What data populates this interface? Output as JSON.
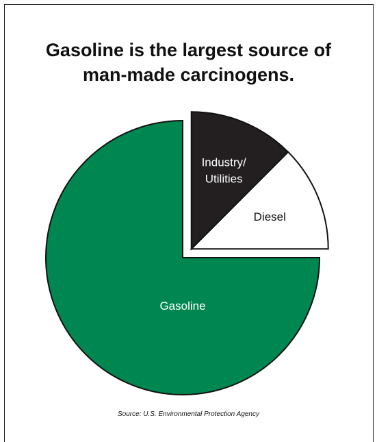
{
  "chart_data": {
    "type": "pie",
    "title": [
      "Gasoline is the largest source of",
      "man-made carcinogens."
    ],
    "categories": [
      "Gasoline",
      "Diesel",
      "Industry/\nUtilities"
    ],
    "values": [
      75,
      12.5,
      12.5
    ],
    "exploded": [
      "Diesel",
      "Industry/\nUtilities"
    ],
    "colors": {
      "Gasoline": "#008751",
      "Diesel": "#ffffff",
      "Industry/\nUtilities": "#231f20"
    },
    "label_colors": {
      "Gasoline": "#ffffff",
      "Diesel": "#111111",
      "Industry/\nUtilities": "#ffffff"
    },
    "source": "Source: U.S. Environmental Protection Agency"
  }
}
